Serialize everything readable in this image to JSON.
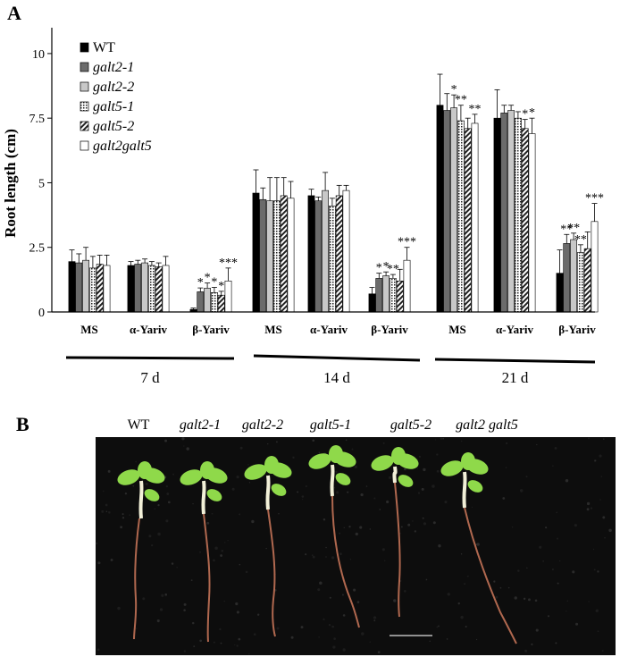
{
  "panel_a_letter": "A",
  "panel_b_letter": "B",
  "chart_data": {
    "type": "bar",
    "title": "",
    "ylabel": "Root length (cm)",
    "xlabel": "",
    "ylim": [
      0,
      11
    ],
    "yticks": [
      0,
      2.5,
      5,
      7.5,
      10
    ],
    "ytick_labels": [
      "0",
      "2.5",
      "5",
      "7.5",
      "10"
    ],
    "legend_position": "top-left",
    "grid": false,
    "categories": [
      "MS",
      "α-Yariv",
      "β-Yariv",
      "MS",
      "α-Yariv",
      "β-Yariv",
      "MS",
      "α-Yariv",
      "β-Yariv"
    ],
    "groups": [
      {
        "label": "7 d",
        "categories": [
          0,
          1,
          2
        ]
      },
      {
        "label": "14 d",
        "categories": [
          3,
          4,
          5
        ]
      },
      {
        "label": "21 d",
        "categories": [
          6,
          7,
          8
        ]
      }
    ],
    "series": [
      {
        "name": "WT",
        "italic": false,
        "pattern": "solid-black",
        "values": [
          1.95,
          1.8,
          0.1,
          4.6,
          4.5,
          0.7,
          8.0,
          7.5,
          1.5
        ],
        "errors": [
          0.45,
          0.15,
          0.05,
          0.9,
          0.25,
          0.25,
          1.2,
          1.1,
          0.9
        ],
        "stars": [
          "",
          "",
          "",
          "",
          "",
          "",
          "",
          "",
          ""
        ]
      },
      {
        "name": "galt2-1",
        "italic": true,
        "pattern": "solid-darkgray",
        "values": [
          1.9,
          1.85,
          0.78,
          4.35,
          4.3,
          1.3,
          7.8,
          7.7,
          2.65
        ],
        "errors": [
          0.35,
          0.15,
          0.15,
          0.45,
          0.15,
          0.2,
          0.65,
          0.3,
          0.35
        ],
        "stars": [
          "",
          "",
          "*",
          "",
          "",
          "*",
          "",
          "",
          "**"
        ]
      },
      {
        "name": "galt2-2",
        "italic": true,
        "pattern": "solid-lightgray",
        "values": [
          2.0,
          1.9,
          0.92,
          4.3,
          4.7,
          1.4,
          7.9,
          7.8,
          2.8
        ],
        "errors": [
          0.5,
          0.15,
          0.2,
          0.9,
          0.7,
          0.15,
          0.5,
          0.2,
          0.25
        ],
        "stars": [
          "",
          "",
          "*",
          "",
          "",
          "*",
          "*",
          "",
          "**"
        ]
      },
      {
        "name": "galt5-1",
        "italic": true,
        "pattern": "dotted",
        "values": [
          1.7,
          1.8,
          0.75,
          4.3,
          4.1,
          1.3,
          7.4,
          7.5,
          2.3
        ],
        "errors": [
          0.45,
          0.15,
          0.2,
          0.9,
          0.3,
          0.15,
          0.6,
          0.25,
          0.3
        ],
        "stars": [
          "",
          "",
          "*",
          "",
          "",
          "**",
          "**",
          "",
          "**"
        ]
      },
      {
        "name": "galt5-2",
        "italic": true,
        "pattern": "hatched",
        "values": [
          1.85,
          1.75,
          0.65,
          4.5,
          4.5,
          1.2,
          7.1,
          7.1,
          2.45
        ],
        "errors": [
          0.35,
          0.15,
          0.15,
          0.7,
          0.4,
          0.45,
          0.4,
          0.35,
          0.65
        ],
        "stars": [
          "",
          "",
          "*",
          "",
          "",
          "",
          "",
          "*",
          ""
        ]
      },
      {
        "name": "galt2galt5",
        "italic": true,
        "pattern": "white",
        "values": [
          1.8,
          1.8,
          1.2,
          4.4,
          4.7,
          2.0,
          7.3,
          6.9,
          3.5
        ],
        "errors": [
          0.4,
          0.35,
          0.5,
          0.65,
          0.2,
          0.5,
          0.35,
          0.6,
          0.7
        ],
        "stars": [
          "",
          "",
          "***",
          "",
          "",
          "***",
          "**",
          "*",
          "***"
        ]
      }
    ]
  },
  "panel_b": {
    "labels": [
      {
        "text": "WT",
        "italic": false
      },
      {
        "text": "galt2-1",
        "italic": true
      },
      {
        "text": "galt2-2",
        "italic": true
      },
      {
        "text": "galt5-1",
        "italic": true
      },
      {
        "text": "galt5-2",
        "italic": true
      },
      {
        "text": "galt2 galt5",
        "italic": true
      }
    ],
    "background_color": "#0d0d0d",
    "leaf_color": "#8fd94a",
    "hypocotyl_color": "#f2f0d8",
    "root_color": "#b0684f"
  }
}
